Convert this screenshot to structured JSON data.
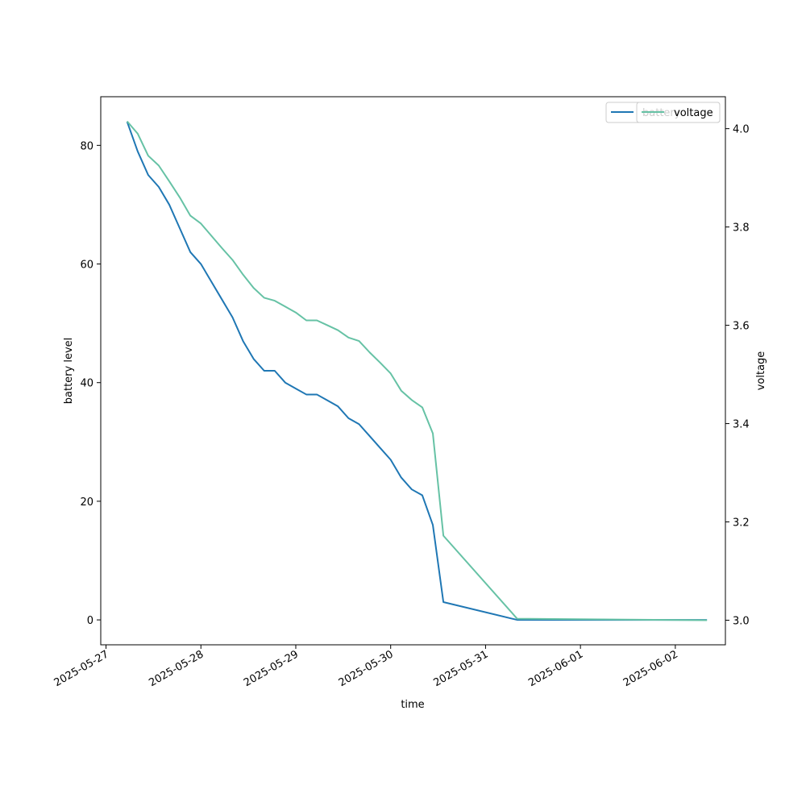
{
  "chart_data": {
    "type": "line",
    "xlabel": "time",
    "ylabel_left": "battery level",
    "ylabel_right": "voltage",
    "x_range": [
      "2025-05-26T22:40",
      "2025-06-02T12:40"
    ],
    "y_left_range": [
      -4.2,
      88.2
    ],
    "y_right_range": [
      2.95,
      4.065
    ],
    "x_ticks": [
      "2025-05-27",
      "2025-05-28",
      "2025-05-29",
      "2025-05-30",
      "2025-05-31",
      "2025-06-01",
      "2025-06-02"
    ],
    "y_left_ticks": [
      0,
      20,
      40,
      60,
      80
    ],
    "y_right_ticks": [
      3.0,
      3.2,
      3.4,
      3.6,
      3.8,
      4.0
    ],
    "legend_position": "upper-right",
    "series": [
      {
        "name": "battery",
        "axis": "left",
        "color": "#1f77b4",
        "points": [
          [
            "2025-05-27T05:20",
            84
          ],
          [
            "2025-05-27T08:00",
            79
          ],
          [
            "2025-05-27T10:40",
            75
          ],
          [
            "2025-05-27T13:20",
            73
          ],
          [
            "2025-05-27T16:00",
            70
          ],
          [
            "2025-05-27T18:40",
            66
          ],
          [
            "2025-05-27T21:20",
            62
          ],
          [
            "2025-05-28T00:00",
            60
          ],
          [
            "2025-05-28T02:40",
            57
          ],
          [
            "2025-05-28T05:20",
            54
          ],
          [
            "2025-05-28T08:00",
            51
          ],
          [
            "2025-05-28T10:40",
            47
          ],
          [
            "2025-05-28T13:20",
            44
          ],
          [
            "2025-05-28T16:00",
            42
          ],
          [
            "2025-05-28T18:40",
            42
          ],
          [
            "2025-05-28T21:20",
            40
          ],
          [
            "2025-05-29T00:00",
            39
          ],
          [
            "2025-05-29T02:40",
            38
          ],
          [
            "2025-05-29T05:20",
            38
          ],
          [
            "2025-05-29T08:00",
            37
          ],
          [
            "2025-05-29T10:40",
            36
          ],
          [
            "2025-05-29T13:20",
            34
          ],
          [
            "2025-05-29T16:00",
            33
          ],
          [
            "2025-05-29T18:40",
            31
          ],
          [
            "2025-05-29T21:20",
            29
          ],
          [
            "2025-05-30T00:00",
            27
          ],
          [
            "2025-05-30T02:40",
            24
          ],
          [
            "2025-05-30T05:20",
            22
          ],
          [
            "2025-05-30T08:00",
            21
          ],
          [
            "2025-05-30T10:40",
            16
          ],
          [
            "2025-05-30T13:20",
            3
          ],
          [
            "2025-05-31T08:00",
            0
          ],
          [
            "2025-06-02T08:00",
            0
          ]
        ]
      },
      {
        "name": "voltage",
        "axis": "right",
        "color": "#66c2a5",
        "points": [
          [
            "2025-05-27T05:20",
            4.015
          ],
          [
            "2025-05-27T08:00",
            3.99
          ],
          [
            "2025-05-27T10:40",
            3.945
          ],
          [
            "2025-05-27T13:20",
            3.925
          ],
          [
            "2025-05-27T16:00",
            3.893
          ],
          [
            "2025-05-27T18:40",
            3.86
          ],
          [
            "2025-05-27T21:20",
            3.823
          ],
          [
            "2025-05-28T00:00",
            3.807
          ],
          [
            "2025-05-28T02:40",
            3.782
          ],
          [
            "2025-05-28T05:20",
            3.757
          ],
          [
            "2025-05-28T08:00",
            3.733
          ],
          [
            "2025-05-28T10:40",
            3.703
          ],
          [
            "2025-05-28T13:20",
            3.676
          ],
          [
            "2025-05-28T16:00",
            3.656
          ],
          [
            "2025-05-28T18:40",
            3.65
          ],
          [
            "2025-05-28T21:20",
            3.638
          ],
          [
            "2025-05-29T00:00",
            3.626
          ],
          [
            "2025-05-29T02:40",
            3.61
          ],
          [
            "2025-05-29T05:20",
            3.61
          ],
          [
            "2025-05-29T08:00",
            3.6
          ],
          [
            "2025-05-29T10:40",
            3.59
          ],
          [
            "2025-05-29T13:20",
            3.575
          ],
          [
            "2025-05-29T16:00",
            3.568
          ],
          [
            "2025-05-29T18:40",
            3.545
          ],
          [
            "2025-05-29T21:20",
            3.524
          ],
          [
            "2025-05-30T00:00",
            3.502
          ],
          [
            "2025-05-30T02:40",
            3.467
          ],
          [
            "2025-05-30T05:20",
            3.448
          ],
          [
            "2025-05-30T08:00",
            3.433
          ],
          [
            "2025-05-30T10:40",
            3.38
          ],
          [
            "2025-05-30T13:20",
            3.172
          ],
          [
            "2025-05-31T08:00",
            3.003
          ],
          [
            "2025-06-02T08:00",
            3.0
          ]
        ]
      }
    ],
    "legend_entries": [
      "battery",
      "voltage"
    ]
  }
}
